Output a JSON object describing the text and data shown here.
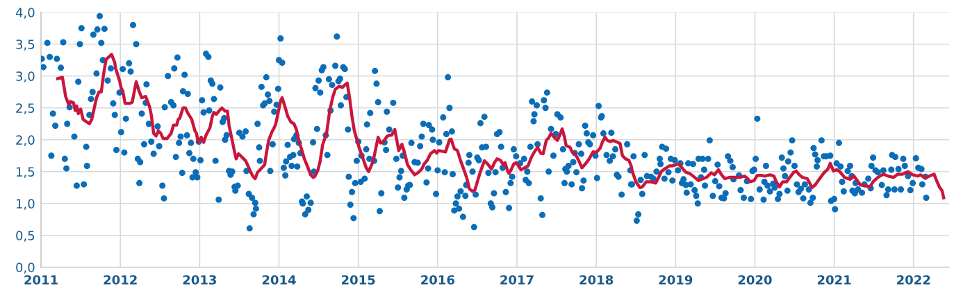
{
  "chart_data": {
    "type": "scatter",
    "xlim": [
      2011,
      2022.45
    ],
    "ylim": [
      0,
      4
    ],
    "xticks": [
      2011,
      2012,
      2013,
      2014,
      2015,
      2016,
      2017,
      2018,
      2019,
      2020,
      2021,
      2022
    ],
    "yticks": [
      {
        "value": 0,
        "label": "0,0"
      },
      {
        "value": 0.5,
        "label": "0,5"
      },
      {
        "value": 1,
        "label": "1,0"
      },
      {
        "value": 1.5,
        "label": "1,5"
      },
      {
        "value": 2,
        "label": "2,0"
      },
      {
        "value": 2.5,
        "label": "2,5"
      },
      {
        "value": 3,
        "label": "3,0"
      },
      {
        "value": 3.5,
        "label": "3,5"
      },
      {
        "value": 4,
        "label": "4,0"
      }
    ],
    "grid": true,
    "marker": "circle",
    "series": [
      {
        "color": "#0b6db7",
        "x": [
          2011.01,
          2011.03,
          2011.08,
          2011.11,
          2011.13,
          2011.15,
          2011.18,
          2011.2,
          2011.25,
          2011.28,
          2011.3,
          2011.32,
          2011.33,
          2011.36,
          2011.42,
          2011.45,
          2011.47,
          2011.49,
          2011.51,
          2011.54,
          2011.57,
          2011.58,
          2011.61,
          2011.63,
          2011.65,
          2011.66,
          2011.7,
          2011.71,
          2011.74,
          2011.76,
          2011.78,
          2011.8,
          2011.84,
          2011.88,
          2011.91,
          2011.93,
          2011.95,
          2011.99,
          2012.01,
          2012.03,
          2012.05,
          2012.07,
          2012.11,
          2012.13,
          2012.16,
          2012.2,
          2012.22,
          2012.24,
          2012.25,
          2012.27,
          2012.3,
          2012.33,
          2012.32,
          2012.36,
          2012.39,
          2012.42,
          2012.47,
          2012.49,
          2012.53,
          2012.55,
          2012.56,
          2012.6,
          2012.64,
          2012.67,
          2012.68,
          2012.7,
          2012.72,
          2012.74,
          2012.76,
          2012.78,
          2012.79,
          2012.81,
          2012.84,
          2012.85,
          2012.87,
          2012.89,
          2012.91,
          2012.92,
          2012.95,
          2012.97,
          2012.99,
          2013.01,
          2013.03,
          2013.05,
          2013.08,
          2013.11,
          2013.12,
          2013.14,
          2013.16,
          2013.18,
          2013.2,
          2013.24,
          2013.26,
          2013.29,
          2013.31,
          2013.32,
          2013.34,
          2013.37,
          2013.39,
          2013.41,
          2013.44,
          2013.45,
          2013.48,
          2013.5,
          2013.54,
          2013.58,
          2013.59,
          2013.62,
          2013.63,
          2013.66,
          2013.68,
          2013.7,
          2013.71,
          2013.73,
          2013.75,
          2013.76,
          2013.78,
          2013.8,
          2013.82,
          2013.84,
          2013.86,
          2013.88,
          2013.89,
          2013.92,
          2013.94,
          2013.97,
          2013.99,
          2014.0,
          2014.02,
          2014.04,
          2014.06,
          2014.08,
          2014.09,
          2014.11,
          2014.14,
          2014.16,
          2014.18,
          2014.19,
          2014.22,
          2014.23,
          2014.25,
          2014.27,
          2014.29,
          2014.3,
          2014.33,
          2014.35,
          2014.37,
          2014.4,
          2014.43,
          2014.44,
          2014.48,
          2014.46,
          2014.5,
          2014.52,
          2014.54,
          2014.56,
          2014.59,
          2014.61,
          2014.63,
          2014.65,
          2014.67,
          2014.71,
          2014.73,
          2014.75,
          2014.77,
          2014.78,
          2014.81,
          2014.83,
          2014.85,
          2014.87,
          2014.88,
          2014.9,
          2014.92,
          2014.94,
          2014.96,
          2014.98,
          2015.0,
          2015.03,
          2015.04,
          2015.08,
          2015.1,
          2015.11,
          2015.14,
          2015.15,
          2015.2,
          2015.21,
          2015.23,
          2015.25,
          2015.27,
          2015.29,
          2015.33,
          2015.35,
          2015.36,
          2015.39,
          2015.44,
          2015.48,
          2015.5,
          2015.52,
          2015.54,
          2015.56,
          2015.58,
          2015.61,
          2015.63,
          2015.65,
          2015.67,
          2015.71,
          2015.75,
          2015.78,
          2015.8,
          2015.82,
          2015.86,
          2015.88,
          2015.89,
          2015.93,
          2015.94,
          2015.98,
          2016.0,
          2016.02,
          2016.07,
          2016.09,
          2016.11,
          2016.13,
          2016.15,
          2016.18,
          2016.19,
          2016.21,
          2016.23,
          2016.25,
          2016.27,
          2016.29,
          2016.32,
          2016.35,
          2016.36,
          2016.39,
          2016.4,
          2016.44,
          2016.46,
          2016.48,
          2016.5,
          2016.52,
          2016.54,
          2016.56,
          2016.59,
          2016.61,
          2016.64,
          2016.67,
          2016.69,
          2016.71,
          2016.73,
          2016.75,
          2016.78,
          2016.8,
          2016.82,
          2016.86,
          2016.9,
          2016.92,
          2016.94,
          2016.96,
          2016.99,
          2017.04,
          2017.09,
          2017.13,
          2017.11,
          2017.15,
          2017.17,
          2017.19,
          2017.21,
          2017.22,
          2017.25,
          2017.26,
          2017.3,
          2017.32,
          2017.34,
          2017.36,
          2017.38,
          2017.4,
          2017.43,
          2017.46,
          2017.49,
          2017.51,
          2017.55,
          2017.58,
          2017.6,
          2017.61,
          2017.63,
          2017.65,
          2017.69,
          2017.71,
          2017.73,
          2017.75,
          2017.78,
          2017.81,
          2017.82,
          2017.84,
          2017.86,
          2017.88,
          2017.9,
          2017.92,
          2017.96,
          2017.99,
          2018.01,
          2018.03,
          2018.06,
          2018.07,
          2018.09,
          2018.13,
          2018.17,
          2018.19,
          2018.21,
          2018.24,
          2018.26,
          2018.28,
          2018.32,
          2018.39,
          2018.43,
          2018.44,
          2018.47,
          2018.45,
          2018.51,
          2018.53,
          2018.56,
          2018.58,
          2018.61,
          2018.64,
          2018.69,
          2018.72,
          2018.76,
          2018.8,
          2018.81,
          2018.83,
          2018.86,
          2018.88,
          2018.91,
          2018.94,
          2018.96,
          2018.99,
          2019.03,
          2019.06,
          2019.08,
          2019.1,
          2019.13,
          2019.14,
          2019.16,
          2019.19,
          2019.22,
          2019.24,
          2019.26,
          2019.28,
          2019.29,
          2019.32,
          2019.34,
          2019.36,
          2019.37,
          2019.41,
          2019.43,
          2019.47,
          2019.5,
          2019.53,
          2019.55,
          2019.58,
          2019.61,
          2019.63,
          2019.66,
          2019.69,
          2019.72,
          2019.73,
          2019.8,
          2019.82,
          2019.86,
          2019.9,
          2019.95,
          2019.97,
          2019.99,
          2020.01,
          2020.03,
          2020.06,
          2020.11,
          2020.12,
          2020.14,
          2020.16,
          2020.19,
          2020.23,
          2020.25,
          2020.29,
          2020.31,
          2020.34,
          2020.36,
          2020.38,
          2020.41,
          2020.42,
          2020.45,
          2020.47,
          2020.5,
          2020.53,
          2020.55,
          2020.58,
          2020.61,
          2020.63,
          2020.68,
          2020.7,
          2020.73,
          2020.74,
          2020.76,
          2020.79,
          2020.78,
          2020.84,
          2020.87,
          2020.9,
          2020.95,
          2020.96,
          2021.0,
          2021.01,
          2021.03,
          2021.06,
          2021.08,
          2021.1,
          2021.12,
          2021.17,
          2021.2,
          2021.22,
          2021.23,
          2021.26,
          2021.27,
          2021.3,
          2021.35,
          2021.38,
          2021.43,
          2021.46,
          2021.47,
          2021.49,
          2021.52,
          2021.55,
          2021.6,
          2021.62,
          2021.66,
          2021.68,
          2021.72,
          2021.73,
          2021.76,
          2021.77,
          2021.81,
          2021.84,
          2021.87,
          2021.89,
          2021.93,
          2021.96,
          2021.99,
          2022.03,
          2022.06,
          2022.1,
          2022.11,
          2022.15,
          2022.16
        ],
        "values": [
          3.27,
          3.14,
          3.52,
          3.3,
          1.75,
          2.41,
          2.22,
          3.27,
          3.13,
          3.53,
          1.7,
          1.55,
          2.25,
          2.51,
          2.05,
          1.28,
          2.91,
          3.5,
          3.75,
          1.3,
          1.89,
          1.59,
          2.39,
          2.64,
          2.75,
          3.65,
          3.04,
          3.73,
          3.94,
          3.52,
          3.25,
          3.74,
          2.93,
          3.12,
          2.57,
          2.39,
          1.84,
          2.74,
          2.12,
          3.11,
          1.8,
          2.33,
          3.2,
          3.07,
          3.8,
          3.5,
          1.7,
          1.32,
          1.65,
          2.41,
          1.93,
          2.87,
          2.58,
          2.25,
          1.97,
          1.78,
          2.21,
          1.9,
          1.28,
          1.08,
          2.51,
          3.0,
          2.59,
          2.54,
          3.12,
          1.73,
          3.29,
          1.95,
          2.05,
          1.48,
          2.76,
          3.02,
          2.07,
          2.72,
          1.79,
          1.95,
          1.41,
          1.7,
          1.49,
          1.41,
          1.97,
          1.68,
          2.62,
          2.43,
          3.35,
          3.3,
          2.46,
          2.93,
          2.88,
          2.64,
          1.67,
          1.06,
          2.82,
          2.28,
          2.34,
          2.0,
          2.07,
          1.51,
          1.45,
          1.5,
          1.26,
          1.2,
          1.28,
          2.11,
          2.05,
          2.13,
          1.51,
          1.15,
          0.61,
          1.09,
          0.83,
          1.01,
          0.92,
          2.25,
          1.88,
          1.67,
          2.83,
          2.54,
          2.57,
          2.98,
          2.71,
          2.61,
          1.51,
          1.93,
          2.44,
          2.55,
          2.8,
          3.25,
          3.59,
          3.21,
          1.56,
          1.44,
          1.66,
          1.92,
          1.73,
          1.59,
          1.76,
          2.01,
          2.07,
          1.58,
          1.95,
          1.79,
          1.03,
          1.0,
          0.83,
          1.11,
          0.9,
          1.01,
          1.96,
          1.5,
          2.17,
          2.81,
          2.93,
          2.74,
          3.09,
          3.14,
          2.07,
          1.76,
          2.95,
          2.46,
          2.86,
          3.16,
          3.62,
          2.92,
          2.96,
          2.54,
          3.14,
          3.11,
          2.67,
          2.16,
          1.42,
          0.98,
          1.18,
          0.77,
          1.32,
          1.67,
          1.97,
          1.34,
          1.75,
          1.39,
          1.85,
          2.24,
          1.7,
          2.42,
          1.67,
          3.08,
          2.88,
          2.59,
          0.88,
          1.16,
          1.96,
          1.84,
          2.44,
          2.16,
          2.58,
          1.7,
          1.25,
          1.41,
          1.51,
          1.75,
          1.09,
          1.22,
          1.28,
          1.29,
          1.95,
          1.65,
          1.64,
          1.9,
          2.05,
          2.25,
          1.33,
          1.55,
          2.23,
          2.16,
          2.0,
          1.15,
          1.52,
          1.96,
          2.35,
          1.49,
          2.09,
          2.98,
          2.5,
          2.13,
          1.46,
          0.89,
          1.0,
          1.11,
          0.92,
          1.19,
          0.79,
          1.12,
          1.29,
          1.64,
          1.76,
          1.5,
          0.63,
          1.14,
          1.72,
          1.68,
          2.26,
          1.88,
          2.36,
          1.89,
          1.48,
          1.0,
          0.94,
          1.16,
          1.49,
          2.09,
          2.12,
          1.89,
          1.56,
          1.18,
          0.93,
          1.32,
          1.42,
          1.85,
          1.74,
          1.63,
          1.7,
          1.5,
          1.37,
          1.32,
          1.89,
          2.6,
          2.29,
          2.4,
          2.54,
          1.93,
          1.08,
          0.82,
          2.62,
          2.5,
          2.74,
          1.5,
          2.17,
          1.75,
          2.09,
          2.4,
          2.35,
          1.85,
          1.32,
          1.54,
          1.5,
          1.59,
          1.3,
          1.65,
          1.79,
          1.49,
          1.93,
          1.78,
          1.24,
          1.36,
          2.22,
          2.1,
          1.96,
          1.93,
          2.07,
          1.75,
          1.4,
          2.53,
          2.35,
          2.37,
          2.1,
          1.76,
          1.67,
          2.11,
          1.74,
          1.85,
          1.45,
          1.42,
          1.14,
          1.93,
          1.52,
          1.3,
          1.74,
          1.3,
          0.73,
          0.83,
          1.37,
          1.15,
          1.76,
          1.43,
          1.42,
          1.39,
          1.5,
          1.7,
          1.62,
          1.89,
          1.39,
          1.86,
          1.49,
          1.7,
          1.36,
          1.68,
          1.52,
          1.63,
          1.32,
          1.38,
          1.29,
          1.17,
          1.63,
          1.3,
          1.62,
          1.21,
          1.12,
          1.0,
          1.7,
          1.41,
          1.7,
          1.53,
          1.28,
          1.7,
          1.99,
          1.12,
          1.35,
          1.61,
          1.27,
          1.09,
          1.08,
          1.16,
          1.74,
          1.67,
          1.57,
          1.38,
          1.44,
          1.21,
          1.09,
          1.35,
          1.07,
          1.51,
          1.53,
          1.7,
          2.33,
          1.22,
          1.06,
          1.34,
          1.59,
          1.28,
          1.19,
          1.31,
          1.25,
          1.07,
          1.15,
          1.72,
          1.55,
          1.43,
          1.2,
          1.66,
          1.8,
          1.99,
          1.59,
          1.3,
          1.18,
          1.23,
          1.08,
          1.3,
          1.22,
          1.01,
          1.09,
          1.87,
          1.77,
          1.68,
          1.58,
          1.99,
          1.74,
          1.74,
          1.75,
          1.04,
          1.07,
          0.91,
          1.63,
          1.95,
          1.58,
          1.34,
          1.19,
          1.51,
          1.59,
          1.43,
          1.2,
          1.16,
          1.32,
          1.22,
          1.17,
          1.3,
          1.39,
          1.24,
          1.59,
          1.72,
          1.52,
          1.49,
          1.29,
          1.52,
          1.13,
          1.22,
          1.53,
          1.76,
          1.22,
          1.73,
          1.54,
          1.22,
          1.7,
          1.59,
          1.43,
          1.21,
          1.32,
          1.71,
          1.56,
          1.54,
          1.3,
          1.42,
          1.09
        ]
      },
      {
        "type": "line",
        "color": "#c8173d",
        "marker": "none",
        "line_style": "solid",
        "x": [
          2011.21,
          2011.27,
          2011.31,
          2011.35,
          2011.37,
          2011.41,
          2011.43,
          2011.45,
          2011.47,
          2011.5,
          2011.53,
          2011.61,
          2011.64,
          2011.7,
          2011.73,
          2011.76,
          2011.79,
          2011.82,
          2011.89,
          2011.93,
          2011.94,
          2011.99,
          2012.01,
          2012.03,
          2012.06,
          2012.12,
          2012.15,
          2012.2,
          2012.24,
          2012.27,
          2012.32,
          2012.37,
          2012.39,
          2012.42,
          2012.45,
          2012.48,
          2012.51,
          2012.54,
          2012.59,
          2012.64,
          2012.67,
          2012.71,
          2012.73,
          2012.75,
          2012.79,
          2012.82,
          2012.85,
          2012.9,
          2012.94,
          2012.96,
          2012.98,
          2013.02,
          2013.05,
          2013.08,
          2013.13,
          2013.16,
          2013.18,
          2013.21,
          2013.25,
          2013.28,
          2013.32,
          2013.35,
          2013.37,
          2013.4,
          2013.44,
          2013.46,
          2013.49,
          2013.54,
          2013.58,
          2013.61,
          2013.64,
          2013.67,
          2013.7,
          2013.73,
          2013.77,
          2013.82,
          2013.84,
          2013.87,
          2013.91,
          2013.94,
          2013.96,
          2013.99,
          2014.02,
          2014.04,
          2014.08,
          2014.11,
          2014.15,
          2014.19,
          2014.22,
          2014.25,
          2014.29,
          2014.32,
          2014.35,
          2014.4,
          2014.43,
          2014.45,
          2014.49,
          2014.52,
          2014.55,
          2014.6,
          2014.64,
          2014.68,
          2014.71,
          2014.76,
          2014.8,
          2014.83,
          2014.86,
          2014.89,
          2014.92,
          2014.95,
          2014.98,
          2015.01,
          2015.05,
          2015.1,
          2015.13,
          2015.17,
          2015.2,
          2015.25,
          2015.28,
          2015.31,
          2015.36,
          2015.39,
          2015.42,
          2015.46,
          2015.51,
          2015.55,
          2015.58,
          2015.62,
          2015.66,
          2015.71,
          2015.75,
          2015.8,
          2015.83,
          2015.87,
          2015.91,
          2015.96,
          2015.99,
          2016.01,
          2016.1,
          2016.15,
          2016.17,
          2016.21,
          2016.25,
          2016.29,
          2016.34,
          2016.37,
          2016.4,
          2016.44,
          2016.47,
          2016.5,
          2016.54,
          2016.59,
          2016.63,
          2016.68,
          2016.72,
          2016.75,
          2016.79,
          2016.83,
          2016.85,
          2016.88,
          2016.9,
          2016.93,
          2016.96,
          2016.99,
          2017.02,
          2017.05,
          2017.1,
          2017.14,
          2017.18,
          2017.22,
          2017.26,
          2017.3,
          2017.33,
          2017.37,
          2017.4,
          2017.43,
          2017.47,
          2017.51,
          2017.54,
          2017.57,
          2017.6,
          2017.62,
          2017.67,
          2017.7,
          2017.73,
          2017.78,
          2017.82,
          2017.87,
          2017.91,
          2017.96,
          2018.0,
          2018.05,
          2018.08,
          2018.11,
          2018.14,
          2018.18,
          2018.21,
          2018.27,
          2018.3,
          2018.33,
          2018.37,
          2018.41,
          2018.44,
          2018.45,
          2018.5,
          2018.55,
          2018.58,
          2018.63,
          2018.69,
          2018.75,
          2018.79,
          2018.82,
          2018.86,
          2018.92,
          2018.96,
          2019.04,
          2019.08,
          2019.13,
          2019.18,
          2019.23,
          2019.29,
          2019.33,
          2019.39,
          2019.45,
          2019.49,
          2019.54,
          2019.58,
          2019.62,
          2019.68,
          2019.74,
          2019.81,
          2019.87,
          2019.91,
          2019.94,
          2019.99,
          2020.03,
          2020.08,
          2020.13,
          2020.19,
          2020.24,
          2020.27,
          2020.31,
          2020.35,
          2020.4,
          2020.44,
          2020.49,
          2020.52,
          2020.56,
          2020.6,
          2020.66,
          2020.72,
          2020.76,
          2020.81,
          2020.87,
          2020.92,
          2020.95,
          2020.99,
          2021.03,
          2021.07,
          2021.13,
          2021.2,
          2021.25,
          2021.29,
          2021.33,
          2021.39,
          2021.45,
          2021.49,
          2021.55,
          2021.62,
          2021.68,
          2021.75,
          2021.8,
          2021.86,
          2021.93,
          2021.99,
          2022.05,
          2022.09,
          2022.13,
          2022.18,
          2022.22,
          2022.26,
          2022.29,
          2022.33,
          2022.36,
          2022.38
        ],
        "values": [
          2.96,
          2.98,
          2.68,
          2.55,
          2.6,
          2.58,
          2.46,
          2.53,
          2.41,
          2.48,
          2.32,
          2.25,
          2.32,
          2.66,
          2.75,
          2.75,
          3.04,
          3.26,
          3.34,
          3.21,
          3.12,
          2.93,
          2.81,
          2.77,
          2.57,
          2.57,
          2.59,
          2.91,
          2.75,
          2.66,
          2.68,
          2.51,
          2.39,
          2.1,
          2.06,
          2.14,
          2.1,
          2.02,
          2.02,
          2.1,
          2.23,
          2.23,
          2.32,
          2.34,
          2.5,
          2.5,
          2.42,
          2.32,
          2.14,
          2.1,
          1.96,
          2.04,
          1.96,
          2.07,
          2.19,
          2.37,
          2.43,
          2.4,
          2.46,
          2.5,
          2.45,
          2.45,
          2.23,
          2.05,
          1.81,
          1.7,
          1.78,
          1.72,
          1.67,
          1.59,
          1.5,
          1.43,
          1.39,
          1.49,
          1.54,
          1.61,
          1.78,
          1.99,
          2.12,
          2.19,
          2.25,
          2.43,
          2.61,
          2.66,
          2.5,
          2.37,
          2.28,
          2.25,
          2.16,
          1.99,
          1.83,
          1.7,
          1.61,
          1.45,
          1.41,
          1.42,
          1.52,
          1.67,
          1.92,
          2.1,
          2.46,
          2.68,
          2.79,
          2.84,
          2.82,
          2.86,
          2.89,
          2.66,
          2.37,
          2.14,
          2.01,
          1.88,
          1.74,
          1.56,
          1.5,
          1.61,
          1.74,
          2.04,
          1.95,
          1.96,
          2.05,
          2.07,
          2.07,
          2.16,
          1.83,
          1.93,
          1.81,
          1.61,
          1.53,
          1.45,
          1.48,
          1.54,
          1.62,
          1.68,
          1.78,
          1.83,
          1.79,
          1.83,
          1.81,
          2.0,
          2.01,
          1.86,
          1.83,
          1.67,
          1.5,
          1.39,
          1.23,
          1.19,
          1.21,
          1.34,
          1.5,
          1.67,
          1.62,
          1.54,
          1.65,
          1.7,
          1.68,
          1.61,
          1.64,
          1.52,
          1.47,
          1.54,
          1.62,
          1.64,
          1.59,
          1.53,
          1.56,
          1.59,
          1.72,
          1.81,
          1.88,
          1.79,
          1.78,
          1.99,
          2.03,
          2.1,
          2.04,
          1.99,
          2.07,
          2.17,
          2.04,
          1.91,
          1.88,
          1.8,
          1.79,
          1.67,
          1.56,
          1.63,
          1.7,
          1.81,
          1.8,
          1.87,
          1.97,
          2.04,
          1.99,
          1.97,
          1.99,
          1.96,
          1.94,
          1.75,
          1.7,
          1.68,
          1.59,
          1.52,
          1.34,
          1.25,
          1.26,
          1.34,
          1.34,
          1.32,
          1.42,
          1.5,
          1.54,
          1.59,
          1.59,
          1.62,
          1.56,
          1.49,
          1.47,
          1.42,
          1.36,
          1.38,
          1.41,
          1.48,
          1.45,
          1.53,
          1.45,
          1.39,
          1.41,
          1.41,
          1.41,
          1.43,
          1.39,
          1.34,
          1.36,
          1.44,
          1.44,
          1.43,
          1.45,
          1.43,
          1.34,
          1.26,
          1.34,
          1.34,
          1.41,
          1.49,
          1.51,
          1.45,
          1.41,
          1.39,
          1.25,
          1.29,
          1.38,
          1.48,
          1.54,
          1.63,
          1.51,
          1.53,
          1.5,
          1.41,
          1.38,
          1.43,
          1.36,
          1.29,
          1.28,
          1.26,
          1.34,
          1.41,
          1.46,
          1.43,
          1.41,
          1.46,
          1.46,
          1.5,
          1.45,
          1.43,
          1.45,
          1.41,
          1.42,
          1.44,
          1.46,
          1.36,
          1.25,
          1.2,
          1.09
        ]
      }
    ]
  }
}
